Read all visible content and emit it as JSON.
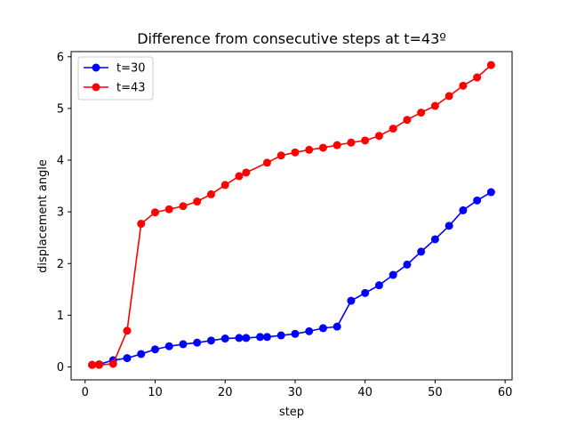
{
  "chart_data": {
    "type": "line",
    "title": "Difference from consecutive steps at t=43º",
    "xlabel": "step",
    "ylabel": "displacement angle",
    "xlim": [
      -2,
      61
    ],
    "ylim": [
      -0.25,
      6.1
    ],
    "xticks": [
      0,
      10,
      20,
      30,
      40,
      50,
      60
    ],
    "yticks": [
      0,
      1,
      2,
      3,
      4,
      5,
      6
    ],
    "grid": false,
    "legend_position": "top-left",
    "series": [
      {
        "name": "t=30",
        "color": "#0000ff",
        "marker": "circle",
        "x": [
          1,
          2,
          4,
          6,
          8,
          10,
          12,
          14,
          16,
          18,
          20,
          22,
          23,
          25,
          26,
          28,
          30,
          32,
          34,
          36,
          38,
          40,
          42,
          44,
          46,
          48,
          50,
          52,
          54,
          56,
          58
        ],
        "y": [
          0.04,
          0.05,
          0.13,
          0.17,
          0.25,
          0.34,
          0.4,
          0.44,
          0.47,
          0.51,
          0.55,
          0.56,
          0.56,
          0.58,
          0.58,
          0.61,
          0.64,
          0.69,
          0.75,
          0.78,
          1.28,
          1.43,
          1.58,
          1.78,
          1.98,
          2.23,
          2.47,
          2.73,
          3.03,
          3.22,
          3.38
        ]
      },
      {
        "name": "t=43",
        "color": "#ff0000",
        "marker": "circle",
        "x": [
          1,
          2,
          4,
          6,
          8,
          10,
          12,
          14,
          16,
          18,
          20,
          22,
          23,
          26,
          28,
          30,
          32,
          34,
          36,
          38,
          40,
          42,
          44,
          46,
          48,
          50,
          52,
          54,
          56,
          58
        ],
        "y": [
          0.04,
          0.04,
          0.06,
          0.7,
          2.77,
          2.99,
          3.05,
          3.11,
          3.2,
          3.34,
          3.52,
          3.69,
          3.76,
          3.95,
          4.09,
          4.15,
          4.2,
          4.24,
          4.29,
          4.34,
          4.38,
          4.47,
          4.61,
          4.78,
          4.92,
          5.05,
          5.24,
          5.44,
          5.6,
          5.84
        ]
      }
    ]
  }
}
